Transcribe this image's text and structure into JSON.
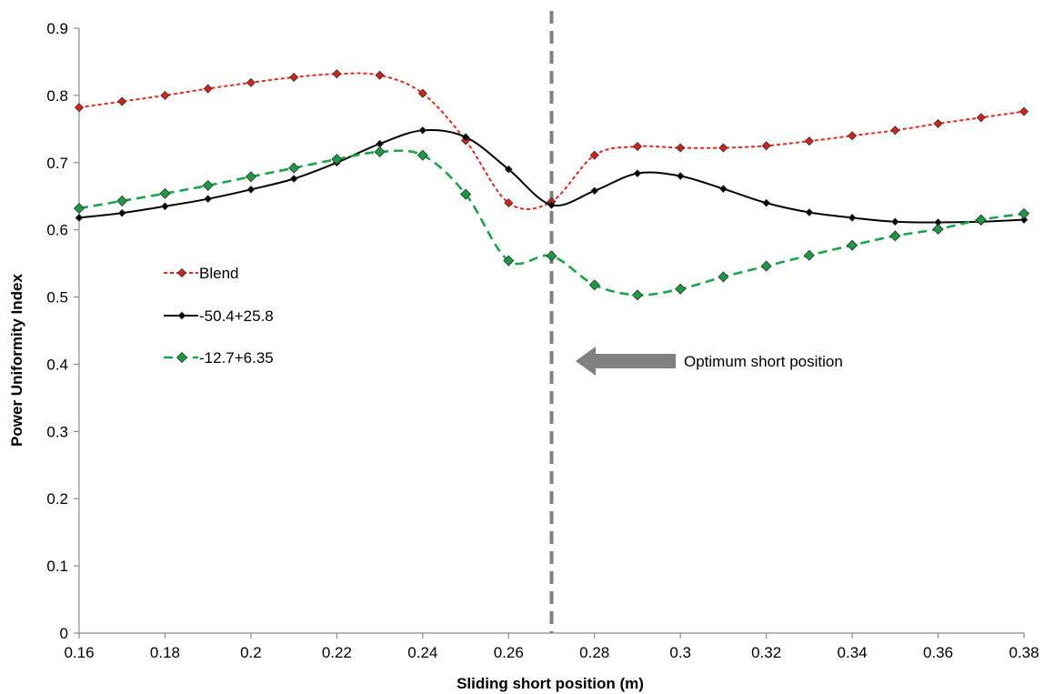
{
  "chart_data": {
    "type": "line",
    "title": "",
    "xlabel": "Sliding short position (m)",
    "ylabel": "Power Uniformity Index",
    "xlim": [
      0.16,
      0.38
    ],
    "ylim": [
      0,
      0.9
    ],
    "x_ticks": [
      "0.16",
      "0.18",
      "0.2",
      "0.22",
      "0.24",
      "0.26",
      "0.28",
      "0.3",
      "0.32",
      "0.34",
      "0.36",
      "0.38"
    ],
    "y_ticks": [
      "0",
      "0.1",
      "0.2",
      "0.3",
      "0.4",
      "0.5",
      "0.6",
      "0.7",
      "0.8",
      "0.9"
    ],
    "grid": false,
    "legend_position": "left-middle",
    "x": [
      0.16,
      0.17,
      0.18,
      0.19,
      0.2,
      0.21,
      0.22,
      0.23,
      0.24,
      0.25,
      0.26,
      0.27,
      0.28,
      0.29,
      0.3,
      0.31,
      0.32,
      0.33,
      0.34,
      0.35,
      0.36,
      0.37,
      0.38
    ],
    "series": [
      {
        "name": "Blend",
        "color": "#e8261c",
        "marker_color": "#d2231a",
        "line_style": "dotted",
        "values": [
          0.782,
          0.791,
          0.8,
          0.81,
          0.819,
          0.827,
          0.832,
          0.83,
          0.803,
          0.733,
          0.64,
          0.642,
          0.711,
          0.724,
          0.722,
          0.722,
          0.725,
          0.732,
          0.74,
          0.748,
          0.758,
          0.767,
          0.776
        ]
      },
      {
        "name": "-50.4+25.8",
        "color": "#000000",
        "marker_color": "#000000",
        "line_style": "solid",
        "values": [
          0.618,
          0.625,
          0.635,
          0.646,
          0.66,
          0.676,
          0.7,
          0.728,
          0.748,
          0.738,
          0.69,
          0.637,
          0.658,
          0.684,
          0.68,
          0.661,
          0.64,
          0.626,
          0.618,
          0.612,
          0.611,
          0.612,
          0.615
        ]
      },
      {
        "name": "-12.7+6.35",
        "color": "#1aa54b",
        "marker_color": "#1a9a45",
        "line_style": "dashed",
        "values": [
          0.632,
          0.643,
          0.654,
          0.666,
          0.679,
          0.692,
          0.705,
          0.716,
          0.711,
          0.653,
          0.554,
          0.561,
          0.518,
          0.503,
          0.512,
          0.53,
          0.546,
          0.562,
          0.577,
          0.591,
          0.601,
          0.615,
          0.624
        ]
      }
    ],
    "annotations": {
      "vertical_line_x": 0.27,
      "vertical_line_color": "#808080",
      "arrow_label": "Optimum short position",
      "arrow_color": "#808080"
    }
  }
}
